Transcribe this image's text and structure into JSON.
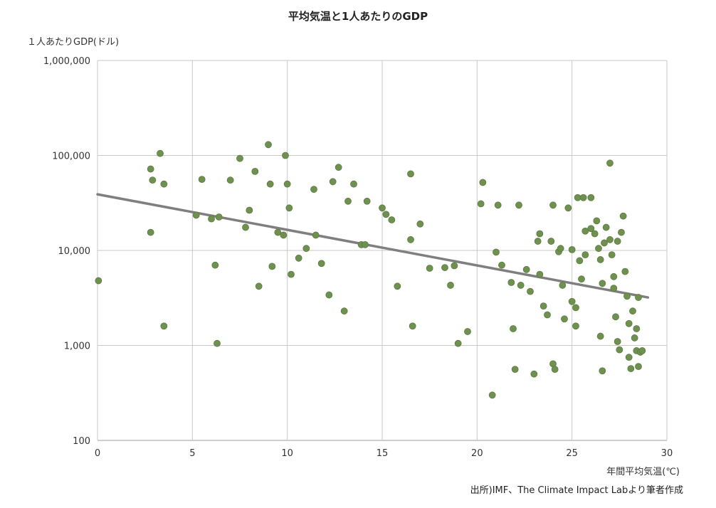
{
  "title": "平均気温と1人あたりのGDP",
  "source": "出所)IMF、The Climate Impact Labより筆者作成",
  "chart_data": {
    "type": "scatter",
    "title": "平均気温と1人あたりのGDP",
    "xlabel": "年間平均気温(℃)",
    "ylabel": "１人あたりGDP(ドル)",
    "xlim": [
      0,
      30
    ],
    "ylim_log": [
      100,
      1000000
    ],
    "x_ticks": [
      0,
      5,
      10,
      15,
      20,
      25,
      30
    ],
    "y_ticks": [
      "100",
      "1,000",
      "10,000",
      "100,000",
      "1,000,000"
    ],
    "grid": true,
    "legend": "none",
    "point_color": "#6f9150",
    "point_radius": 4.5,
    "grid_color": "#c9c9c9",
    "axis_color": "#9e9e9e",
    "trend_color": "#7f7f7f",
    "trendline": {
      "x": [
        0,
        29
      ],
      "y": [
        39000,
        3200
      ]
    },
    "points": [
      [
        0.05,
        4800
      ],
      [
        2.8,
        72000
      ],
      [
        2.9,
        55000
      ],
      [
        3.3,
        105000
      ],
      [
        3.5,
        50000
      ],
      [
        2.8,
        15500
      ],
      [
        3.5,
        1600
      ],
      [
        5.5,
        56000
      ],
      [
        5.2,
        23500
      ],
      [
        6.0,
        21500
      ],
      [
        6.4,
        22500
      ],
      [
        6.2,
        7000
      ],
      [
        6.3,
        1050
      ],
      [
        7.0,
        55000
      ],
      [
        7.5,
        93000
      ],
      [
        7.8,
        17500
      ],
      [
        8.0,
        26500
      ],
      [
        8.3,
        68000
      ],
      [
        8.5,
        4200
      ],
      [
        9.0,
        130000
      ],
      [
        9.1,
        50000
      ],
      [
        9.2,
        6800
      ],
      [
        9.5,
        15500
      ],
      [
        9.9,
        100000
      ],
      [
        9.8,
        14500
      ],
      [
        10.0,
        50000
      ],
      [
        10.1,
        28000
      ],
      [
        10.2,
        5600
      ],
      [
        10.6,
        8300
      ],
      [
        11.0,
        10500
      ],
      [
        11.4,
        44000
      ],
      [
        11.5,
        14500
      ],
      [
        11.8,
        7300
      ],
      [
        12.2,
        3400
      ],
      [
        12.4,
        53000
      ],
      [
        12.7,
        75000
      ],
      [
        13.0,
        2300
      ],
      [
        13.2,
        33000
      ],
      [
        13.5,
        50000
      ],
      [
        13.9,
        11500
      ],
      [
        14.2,
        33000
      ],
      [
        14.1,
        11500
      ],
      [
        15.0,
        28000
      ],
      [
        15.2,
        24000
      ],
      [
        15.5,
        21000
      ],
      [
        15.8,
        4200
      ],
      [
        16.5,
        64000
      ],
      [
        16.5,
        13000
      ],
      [
        16.6,
        1600
      ],
      [
        17.0,
        19000
      ],
      [
        17.5,
        6500
      ],
      [
        18.3,
        6600
      ],
      [
        18.6,
        4300
      ],
      [
        18.8,
        6900
      ],
      [
        19.0,
        1050
      ],
      [
        19.5,
        1400
      ],
      [
        20.2,
        31000
      ],
      [
        20.3,
        52000
      ],
      [
        20.8,
        300
      ],
      [
        21.0,
        9600
      ],
      [
        21.1,
        30000
      ],
      [
        21.3,
        7000
      ],
      [
        21.8,
        4600
      ],
      [
        21.9,
        1500
      ],
      [
        22.0,
        560
      ],
      [
        22.2,
        30000
      ],
      [
        22.3,
        4300
      ],
      [
        22.6,
        6300
      ],
      [
        22.8,
        3700
      ],
      [
        23.0,
        500
      ],
      [
        23.2,
        12500
      ],
      [
        23.3,
        15000
      ],
      [
        23.3,
        5600
      ],
      [
        23.5,
        2600
      ],
      [
        23.7,
        2100
      ],
      [
        23.9,
        12500
      ],
      [
        24.0,
        30000
      ],
      [
        24.0,
        640
      ],
      [
        24.1,
        560
      ],
      [
        24.3,
        9700
      ],
      [
        24.4,
        10500
      ],
      [
        24.5,
        4300
      ],
      [
        24.6,
        1900
      ],
      [
        24.8,
        28000
      ],
      [
        25.0,
        10200
      ],
      [
        25.0,
        2900
      ],
      [
        25.2,
        2500
      ],
      [
        25.2,
        1600
      ],
      [
        25.3,
        36000
      ],
      [
        25.4,
        7800
      ],
      [
        25.5,
        5000
      ],
      [
        25.6,
        36000
      ],
      [
        25.7,
        16000
      ],
      [
        25.7,
        9000
      ],
      [
        26.0,
        36000
      ],
      [
        26.0,
        17000
      ],
      [
        26.2,
        15000
      ],
      [
        26.3,
        20500
      ],
      [
        26.4,
        10500
      ],
      [
        26.5,
        8000
      ],
      [
        26.5,
        1250
      ],
      [
        26.6,
        4500
      ],
      [
        26.6,
        540
      ],
      [
        26.7,
        12000
      ],
      [
        26.8,
        17500
      ],
      [
        27.0,
        83000
      ],
      [
        27.0,
        13000
      ],
      [
        27.1,
        9000
      ],
      [
        27.2,
        5300
      ],
      [
        27.2,
        4000
      ],
      [
        27.3,
        2000
      ],
      [
        27.4,
        12500
      ],
      [
        27.4,
        1100
      ],
      [
        27.5,
        900
      ],
      [
        27.6,
        15500
      ],
      [
        27.7,
        23000
      ],
      [
        27.8,
        6000
      ],
      [
        27.9,
        3300
      ],
      [
        28.0,
        1700
      ],
      [
        28.0,
        750
      ],
      [
        28.1,
        570
      ],
      [
        28.2,
        2300
      ],
      [
        28.3,
        1200
      ],
      [
        28.4,
        1500
      ],
      [
        28.4,
        880
      ],
      [
        28.5,
        3200
      ],
      [
        28.5,
        600
      ],
      [
        28.6,
        850
      ],
      [
        28.7,
        880
      ]
    ]
  }
}
